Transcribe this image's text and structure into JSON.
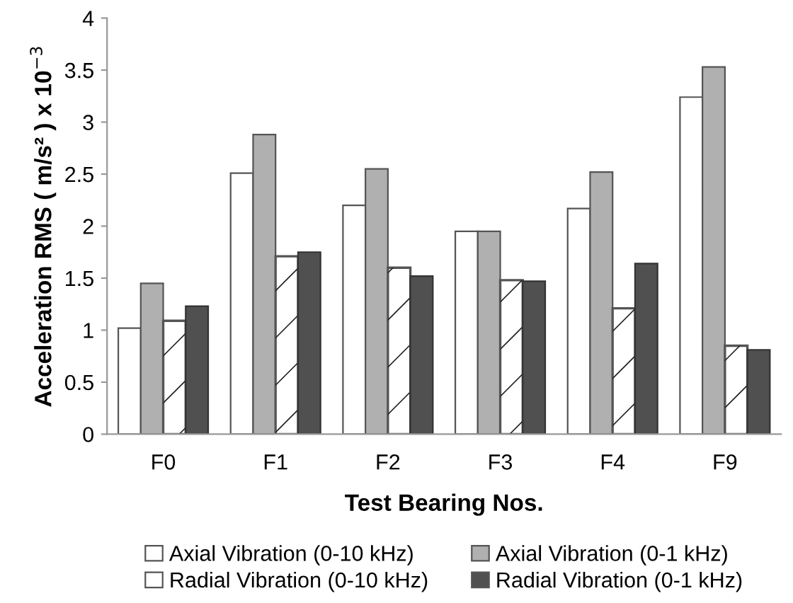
{
  "chart_data": {
    "type": "bar",
    "xlabel": "Test Bearing Nos.",
    "ylabel": "Acceleration RMS ( m/s² ) x 10$^{−3}$",
    "categories": [
      "F0",
      "F1",
      "F2",
      "F3",
      "F4",
      "F9"
    ],
    "series": [
      {
        "name": "Axial Vibration (0-10 kHz)",
        "color": "#ffffff",
        "values": [
          1.02,
          2.51,
          2.2,
          1.95,
          2.17,
          3.24
        ]
      },
      {
        "name": "Axial Vibration (0-1 kHz)",
        "color": "#b0b0b0",
        "values": [
          1.45,
          2.88,
          2.55,
          1.95,
          2.52,
          3.53
        ]
      },
      {
        "name": "Radial Vibration (0-10 kHz)",
        "color": "#ffffff",
        "values": [
          1.09,
          1.71,
          1.6,
          1.48,
          1.21,
          0.85
        ]
      },
      {
        "name": "Radial Vibration (0-1 kHz)",
        "color": "#505050",
        "values": [
          1.23,
          1.75,
          1.52,
          1.47,
          1.64,
          0.81
        ]
      }
    ],
    "ylim": [
      0,
      4
    ],
    "yticks": [
      0,
      0.5,
      1,
      1.5,
      2,
      2.5,
      3,
      3.5,
      4
    ],
    "grid": false,
    "legend": "bottom"
  }
}
